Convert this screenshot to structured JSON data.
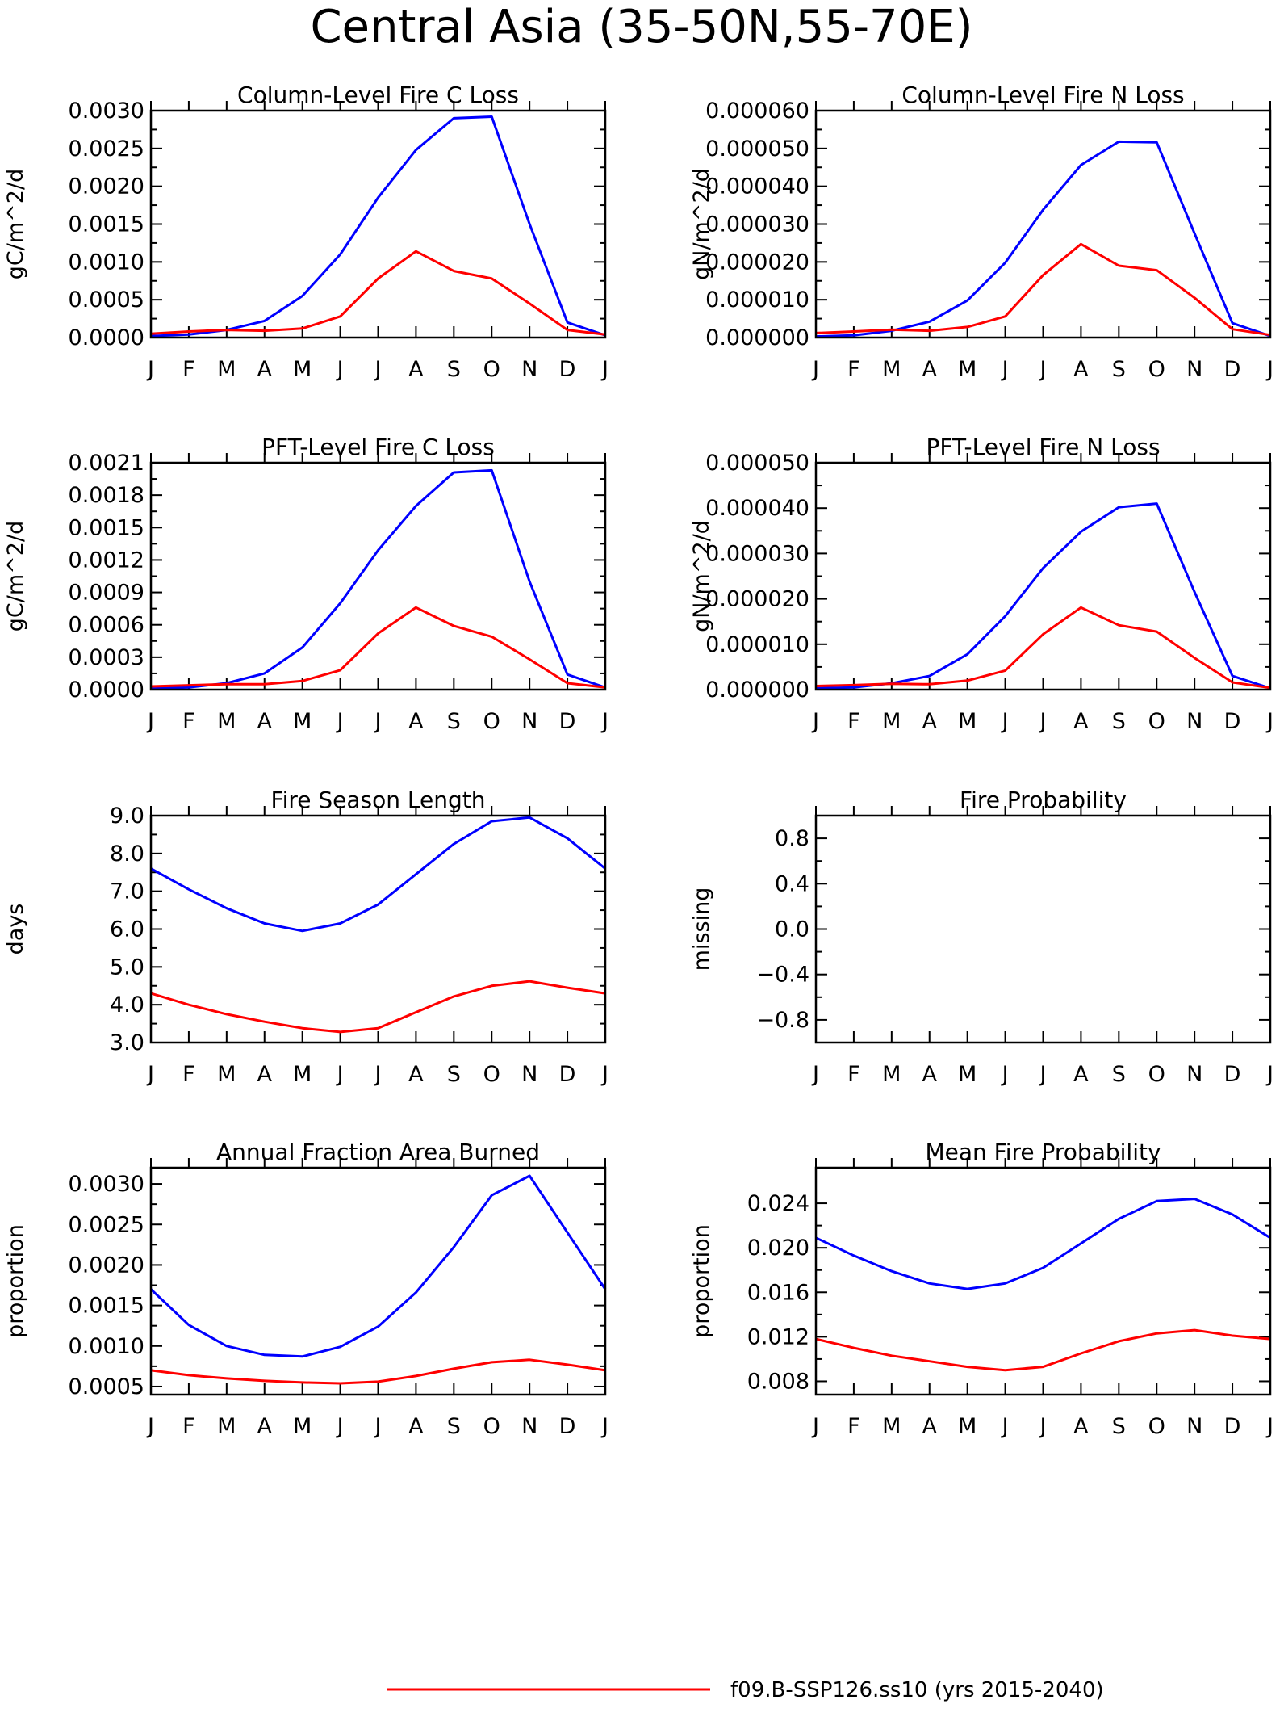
{
  "title": "Central Asia (35-50N,55-70E)",
  "colors": {
    "run_a": "#0000ff",
    "run_b": "#ff0000"
  },
  "legend": [
    {
      "label": "f09.B-SSP126.ss10 (yrs 2015-2040)",
      "color": "#ff0000"
    }
  ],
  "chart_data": [
    {
      "type": "line",
      "title": "Column-Level Fire C Loss",
      "ylabel": "gC/m^2/d",
      "x": [
        "J",
        "F",
        "M",
        "A",
        "M",
        "J",
        "J",
        "A",
        "S",
        "O",
        "N",
        "D",
        "J"
      ],
      "ylim": [
        0,
        0.003
      ],
      "yticks": [
        "0.0000",
        "0.0005",
        "0.0010",
        "0.0015",
        "0.0020",
        "0.0025",
        "0.0030"
      ],
      "series": [
        {
          "color": "#0000ff",
          "values": [
            2e-05,
            4e-05,
            0.0001,
            0.00022,
            0.00055,
            0.0011,
            0.00185,
            0.00248,
            0.0029,
            0.00292,
            0.0015,
            0.0002,
            3e-05
          ]
        },
        {
          "color": "#ff0000",
          "values": [
            5e-05,
            8e-05,
            0.0001,
            9e-05,
            0.00012,
            0.00028,
            0.00078,
            0.00114,
            0.00088,
            0.00078,
            0.00045,
            0.0001,
            4e-05
          ]
        }
      ]
    },
    {
      "type": "line",
      "title": "Column-Level Fire N Loss",
      "ylabel": "gN/m^2/d",
      "x": [
        "J",
        "F",
        "M",
        "A",
        "M",
        "J",
        "J",
        "A",
        "S",
        "O",
        "N",
        "D",
        "J"
      ],
      "ylim": [
        0,
        6e-05
      ],
      "yticks": [
        "0.000000",
        "0.000010",
        "0.000020",
        "0.000030",
        "0.000040",
        "0.000050",
        "0.000060"
      ],
      "series": [
        {
          "color": "#0000ff",
          "values": [
            3e-07,
            6e-07,
            1.8e-06,
            4.2e-06,
            9.8e-06,
            1.98e-05,
            3.38e-05,
            4.56e-05,
            5.18e-05,
            5.16e-05,
            2.75e-05,
            3.8e-06,
            4e-07
          ]
        },
        {
          "color": "#ff0000",
          "values": [
            1.2e-06,
            1.6e-06,
            2.1e-06,
            1.8e-06,
            2.8e-06,
            5.6e-06,
            1.65e-05,
            2.47e-05,
            1.9e-05,
            1.78e-05,
            1.05e-05,
            2.2e-06,
            7e-07
          ]
        }
      ]
    },
    {
      "type": "line",
      "title": "PFT-Level Fire C Loss",
      "ylabel": "gC/m^2/d",
      "x": [
        "J",
        "F",
        "M",
        "A",
        "M",
        "J",
        "J",
        "A",
        "S",
        "O",
        "N",
        "D",
        "J"
      ],
      "ylim": [
        0,
        0.0021
      ],
      "yticks": [
        "0.0000",
        "0.0003",
        "0.0006",
        "0.0009",
        "0.0012",
        "0.0015",
        "0.0018",
        "0.0021"
      ],
      "series": [
        {
          "color": "#0000ff",
          "values": [
            1e-05,
            2e-05,
            6e-05,
            0.00015,
            0.00039,
            0.0008,
            0.00129,
            0.0017,
            0.00201,
            0.00203,
            0.001,
            0.00014,
            2e-05
          ]
        },
        {
          "color": "#ff0000",
          "values": [
            3e-05,
            4e-05,
            5e-05,
            5e-05,
            8e-05,
            0.00018,
            0.00052,
            0.00076,
            0.00059,
            0.00049,
            0.00028,
            6e-05,
            2e-05
          ]
        }
      ]
    },
    {
      "type": "line",
      "title": "PFT-Level Fire N Loss",
      "ylabel": "gN/m^2/d",
      "x": [
        "J",
        "F",
        "M",
        "A",
        "M",
        "J",
        "J",
        "A",
        "S",
        "O",
        "N",
        "D",
        "J"
      ],
      "ylim": [
        0,
        5e-05
      ],
      "yticks": [
        "0.000000",
        "0.000010",
        "0.000020",
        "0.000030",
        "0.000040",
        "0.000050"
      ],
      "series": [
        {
          "color": "#0000ff",
          "values": [
            3e-07,
            5e-07,
            1.4e-06,
            3e-06,
            7.8e-06,
            1.62e-05,
            2.68e-05,
            3.48e-05,
            4.02e-05,
            4.1e-05,
            2.15e-05,
            3e-06,
            3e-07
          ]
        },
        {
          "color": "#ff0000",
          "values": [
            8e-07,
            1e-06,
            1.3e-06,
            1.2e-06,
            2e-06,
            4.2e-06,
            1.22e-05,
            1.81e-05,
            1.42e-05,
            1.28e-05,
            7e-06,
            1.6e-06,
            4e-07
          ]
        }
      ]
    },
    {
      "type": "line",
      "title": "Fire Season Length",
      "ylabel": "days",
      "x": [
        "J",
        "F",
        "M",
        "A",
        "M",
        "J",
        "J",
        "A",
        "S",
        "O",
        "N",
        "D",
        "J"
      ],
      "ylim": [
        3.0,
        9.0
      ],
      "yticks": [
        "3.0",
        "4.0",
        "5.0",
        "6.0",
        "7.0",
        "8.0",
        "9.0"
      ],
      "series": [
        {
          "color": "#0000ff",
          "values": [
            7.6,
            7.05,
            6.55,
            6.15,
            5.95,
            6.15,
            6.65,
            7.45,
            8.25,
            8.85,
            8.95,
            8.4,
            7.6
          ]
        },
        {
          "color": "#ff0000",
          "values": [
            4.3,
            4.0,
            3.75,
            3.55,
            3.38,
            3.28,
            3.38,
            3.8,
            4.22,
            4.5,
            4.62,
            4.45,
            4.3
          ]
        }
      ]
    },
    {
      "type": "line",
      "title": "Fire Probability",
      "ylabel": "missing",
      "x": [
        "J",
        "F",
        "M",
        "A",
        "M",
        "J",
        "J",
        "A",
        "S",
        "O",
        "N",
        "D",
        "J"
      ],
      "ylim": [
        -1.0,
        1.0
      ],
      "yticks": [
        "-0.8",
        "-0.4",
        "0.0",
        "0.4",
        "0.8"
      ],
      "yticks_at": [
        -0.8,
        -0.4,
        0.0,
        0.4,
        0.8
      ],
      "series": []
    },
    {
      "type": "line",
      "title": "Annual Fraction Area Burned",
      "ylabel": "proportion",
      "x": [
        "J",
        "F",
        "M",
        "A",
        "M",
        "J",
        "J",
        "A",
        "S",
        "O",
        "N",
        "D",
        "J"
      ],
      "ylim": [
        0.0004,
        0.0032
      ],
      "yticks": [
        "0.0005",
        "0.0010",
        "0.0015",
        "0.0020",
        "0.0025",
        "0.0030"
      ],
      "yticks_at": [
        0.0005,
        0.001,
        0.0015,
        0.002,
        0.0025,
        0.003
      ],
      "series": [
        {
          "color": "#0000ff",
          "values": [
            0.0017,
            0.00126,
            0.001,
            0.00089,
            0.00087,
            0.00099,
            0.00124,
            0.00166,
            0.00222,
            0.00286,
            0.0031,
            0.0024,
            0.0017
          ]
        },
        {
          "color": "#ff0000",
          "values": [
            0.0007,
            0.00064,
            0.0006,
            0.00057,
            0.00055,
            0.00054,
            0.00056,
            0.00063,
            0.00072,
            0.0008,
            0.00083,
            0.00077,
            0.0007
          ]
        }
      ]
    },
    {
      "type": "line",
      "title": "Mean Fire Probability",
      "ylabel": "proportion",
      "x": [
        "J",
        "F",
        "M",
        "A",
        "M",
        "J",
        "J",
        "A",
        "S",
        "O",
        "N",
        "D",
        "J"
      ],
      "ylim": [
        0.0068,
        0.0272
      ],
      "yticks": [
        "0.008",
        "0.012",
        "0.016",
        "0.020",
        "0.024"
      ],
      "yticks_at": [
        0.008,
        0.012,
        0.016,
        0.02,
        0.024
      ],
      "series": [
        {
          "color": "#0000ff",
          "values": [
            0.0209,
            0.0193,
            0.0179,
            0.0168,
            0.0163,
            0.0168,
            0.0182,
            0.0204,
            0.0226,
            0.0242,
            0.0244,
            0.023,
            0.0209
          ]
        },
        {
          "color": "#ff0000",
          "values": [
            0.0118,
            0.011,
            0.0103,
            0.0098,
            0.0093,
            0.009,
            0.0093,
            0.0105,
            0.0116,
            0.0123,
            0.0126,
            0.0121,
            0.0118
          ]
        }
      ]
    }
  ]
}
